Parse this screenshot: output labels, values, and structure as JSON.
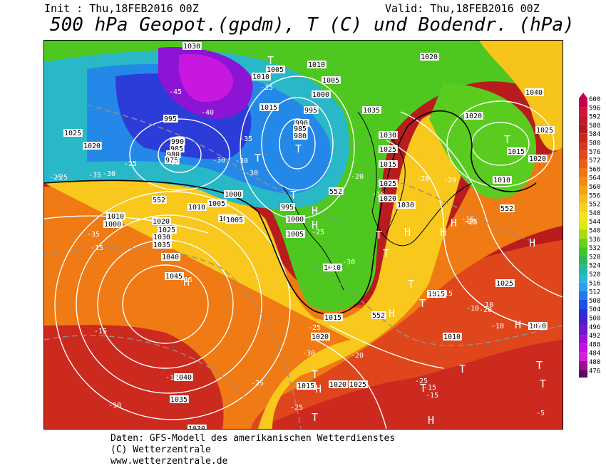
{
  "header": {
    "init": "Init : Thu,18FEB2016 00Z",
    "valid": "Valid: Thu,18FEB2016 00Z",
    "title": "500 hPa Geopot.(gpdm), T (C) und Bodendr. (hPa)"
  },
  "footer": {
    "line1": "Daten: GFS-Modell des amerikanischen Wetterdienstes",
    "line2": "(C) Wetterzentrale",
    "line3": "www.wetterzentrale.de"
  },
  "legend": {
    "levels": [
      "600",
      "596",
      "592",
      "588",
      "584",
      "580",
      "576",
      "572",
      "568",
      "564",
      "560",
      "556",
      "552",
      "548",
      "544",
      "540",
      "536",
      "532",
      "528",
      "524",
      "520",
      "516",
      "512",
      "508",
      "504",
      "500",
      "496",
      "492",
      "488",
      "484",
      "480",
      "476"
    ],
    "colors": [
      "#c4004a",
      "#d1143c",
      "#c21a2e",
      "#b21e1e",
      "#c8281e",
      "#d83820",
      "#e04a1a",
      "#e85e18",
      "#ee7410",
      "#f28c10",
      "#f4a410",
      "#f6bc18",
      "#f8d020",
      "#f6e21e",
      "#dcea10",
      "#a8dc10",
      "#6ad21a",
      "#3cc828",
      "#2ab85a",
      "#24b8a0",
      "#28b8d4",
      "#2aa0f0",
      "#2478f0",
      "#1e50e8",
      "#2a30d8",
      "#4a1ec8",
      "#7214d0",
      "#9a10d8",
      "#c010e0",
      "#d220d8",
      "#a0108c",
      "#5a0860"
    ]
  },
  "map": {
    "pressure_labels": [
      "1030",
      "1020",
      "1010",
      "1005",
      "1010",
      "1005",
      "1000",
      "995",
      "990",
      "985",
      "980",
      "1015",
      "1025",
      "1020",
      "995",
      "990",
      "985",
      "980",
      "975",
      "1000",
      "1005",
      "1010",
      "1015",
      "1020",
      "1025",
      "1030",
      "1035",
      "1040",
      "1045",
      "1040",
      "1035",
      "1030",
      "995",
      "1000",
      "1005",
      "1010",
      "1015",
      "1020",
      "1025",
      "1030",
      "1035",
      "1015",
      "1020",
      "1025",
      "1030",
      "1025",
      "1020",
      "1015",
      "1010",
      "1040",
      "1020",
      "1020",
      "1025",
      "1015",
      "1010",
      "1025",
      "1020",
      "1015",
      "1010",
      "1000",
      "1005"
    ],
    "temperature_labels": [
      "-45",
      "-40",
      "-35",
      "-35",
      "-30",
      "-30",
      "-30",
      "-25",
      "-25",
      "-25",
      "-30",
      "-35",
      "-35",
      "-25",
      "-20",
      "-20",
      "-25",
      "-20",
      "-20",
      "-15",
      "-15",
      "-15",
      "-15",
      "-10",
      "-10",
      "-15",
      "-10",
      "-10",
      "-5",
      "-25",
      "-20",
      "-15",
      "-10",
      "-15",
      "-20",
      "-25",
      "-30",
      "-15",
      "-20",
      "-25",
      "-30",
      "-25",
      "-15",
      "-30",
      "-25"
    ],
    "height_labels": [
      "552",
      "552",
      "552",
      "552"
    ],
    "highs": [
      "H",
      "H",
      "H",
      "H",
      "H",
      "H",
      "H",
      "H",
      "H",
      "H",
      "H"
    ],
    "lows": [
      "T",
      "T",
      "T",
      "T",
      "T",
      "T",
      "T",
      "T",
      "T",
      "T",
      "T",
      "T",
      "T",
      "T",
      "T"
    ]
  }
}
